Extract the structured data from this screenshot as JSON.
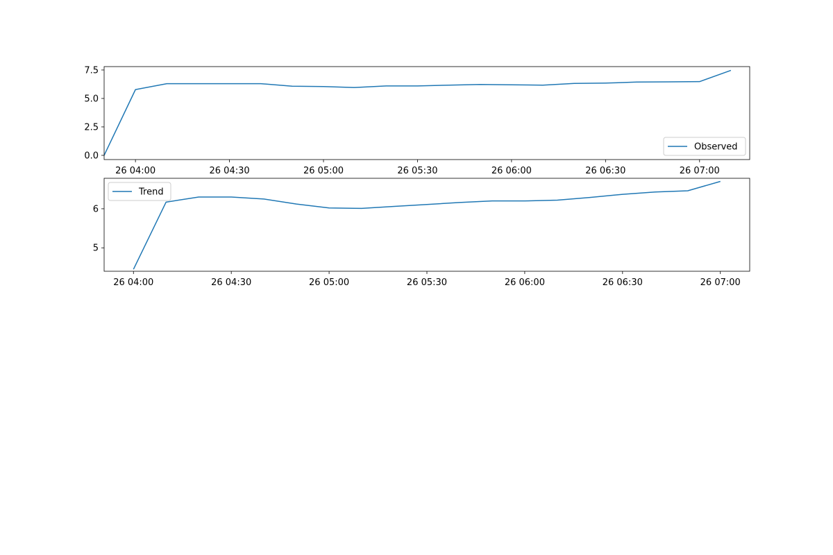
{
  "chart_data": [
    {
      "type": "line",
      "title": "",
      "xlabel": "",
      "ylabel": "",
      "x_unit": "time (minutes of 26 day)",
      "xlim_minutes": [
        230,
        436
      ],
      "ylim": [
        -0.37,
        7.8
      ],
      "yticks": [
        0.0,
        2.5,
        5.0,
        7.5
      ],
      "ytick_labels": [
        "0.0",
        "2.5",
        "5.0",
        "7.5"
      ],
      "xticks_minutes": [
        240,
        270,
        300,
        330,
        360,
        390,
        420
      ],
      "xtick_labels": [
        "26 04:00",
        "26 04:30",
        "26 05:00",
        "26 05:30",
        "26 06:00",
        "26 06:30",
        "26 07:00"
      ],
      "grid": false,
      "legend_placement": "lower-right",
      "series": [
        {
          "name": "Observed",
          "color": "#1f77b4",
          "x_minutes": [
            230,
            240,
            250,
            260,
            270,
            280,
            290,
            300,
            310,
            320,
            330,
            340,
            350,
            360,
            370,
            380,
            390,
            400,
            410,
            420,
            430
          ],
          "values": [
            0.0,
            5.78,
            6.3,
            6.3,
            6.3,
            6.3,
            6.08,
            6.05,
            5.96,
            6.1,
            6.1,
            6.17,
            6.23,
            6.2,
            6.17,
            6.32,
            6.35,
            6.44,
            6.46,
            6.48,
            7.47
          ]
        }
      ]
    },
    {
      "type": "line",
      "title": "",
      "xlabel": "",
      "ylabel": "",
      "x_unit": "time (minutes of 26 day)",
      "xlim_minutes": [
        231,
        429
      ],
      "ylim": [
        4.4,
        6.78
      ],
      "yticks": [
        5,
        6
      ],
      "ytick_labels": [
        "5",
        "6"
      ],
      "xticks_minutes": [
        240,
        270,
        300,
        330,
        360,
        390,
        420
      ],
      "xtick_labels": [
        "26 04:00",
        "26 04:30",
        "26 05:00",
        "26 05:30",
        "26 06:00",
        "26 06:30",
        "26 07:00"
      ],
      "grid": false,
      "legend_placement": "upper-left",
      "series": [
        {
          "name": "Trend",
          "color": "#1f77b4",
          "x_minutes": [
            240,
            250,
            260,
            270,
            280,
            290,
            300,
            310,
            320,
            330,
            340,
            350,
            360,
            370,
            380,
            390,
            400,
            410,
            420
          ],
          "values": [
            4.45,
            6.17,
            6.3,
            6.3,
            6.25,
            6.12,
            6.02,
            6.01,
            6.06,
            6.11,
            6.16,
            6.2,
            6.2,
            6.22,
            6.29,
            6.37,
            6.43,
            6.46,
            6.7
          ]
        }
      ]
    }
  ]
}
